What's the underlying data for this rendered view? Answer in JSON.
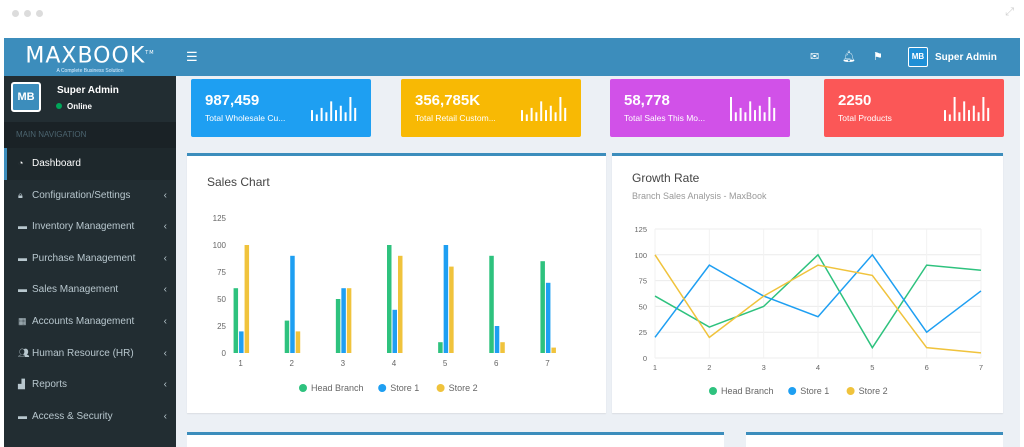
{
  "app": {
    "brand": "MAXBOOK",
    "brand_tm": "TM",
    "tagline": "A Complete Business Solution",
    "avatar_text": "MB"
  },
  "user": {
    "name": "Super Admin",
    "status": "Online"
  },
  "sidebar": {
    "header": "MAIN NAVIGATION",
    "items": [
      {
        "label": "Dashboard",
        "icon": "dashboard-icon",
        "active": true,
        "has_children": false
      },
      {
        "label": "Configuration/Settings",
        "icon": "lock-icon",
        "active": false,
        "has_children": true
      },
      {
        "label": "Inventory Management",
        "icon": "book-icon",
        "active": false,
        "has_children": true
      },
      {
        "label": "Purchase Management",
        "icon": "book-icon",
        "active": false,
        "has_children": true
      },
      {
        "label": "Sales Management",
        "icon": "book-icon",
        "active": false,
        "has_children": true
      },
      {
        "label": "Accounts Management",
        "icon": "calculator-icon",
        "active": false,
        "has_children": true
      },
      {
        "label": "Human Resource (HR)",
        "icon": "users-icon",
        "active": false,
        "has_children": true
      },
      {
        "label": "Reports",
        "icon": "bar-chart-icon",
        "active": false,
        "has_children": true
      },
      {
        "label": "Access & Security",
        "icon": "book-icon",
        "active": false,
        "has_children": true
      }
    ]
  },
  "topbar": {
    "user_name": "Super Admin"
  },
  "stats": [
    {
      "value": "987,459",
      "label": "Total Wholesale Cu...",
      "color": "#1e9ff2",
      "bars": [
        5,
        3,
        6,
        4,
        9,
        5,
        7,
        4,
        11,
        6
      ]
    },
    {
      "value": "356,785K",
      "label": "Total Retail Custom...",
      "color": "#f8b904",
      "bars": [
        5,
        3,
        6,
        4,
        9,
        5,
        7,
        4,
        11,
        6
      ]
    },
    {
      "value": "58,778",
      "label": "Total Sales This Mo...",
      "color": "#d151e8",
      "bars": [
        11,
        4,
        6,
        4,
        9,
        5,
        7,
        4,
        11,
        6
      ]
    },
    {
      "value": "2250",
      "label": "Total Products",
      "color": "#fb5757",
      "bars": [
        5,
        3,
        11,
        4,
        9,
        5,
        7,
        4,
        11,
        6
      ]
    }
  ],
  "colors": {
    "head": "#2ec27e",
    "store1": "#1e9ff2",
    "store2": "#f0c33c"
  },
  "sales_chart": {
    "title": "Sales Chart",
    "chart_data": {
      "type": "bar",
      "categories": [
        "1",
        "2",
        "3",
        "4",
        "5",
        "6",
        "7"
      ],
      "series": [
        {
          "name": "Head Branch",
          "values": [
            60,
            30,
            50,
            100,
            10,
            90,
            85
          ]
        },
        {
          "name": "Store 1",
          "values": [
            20,
            90,
            60,
            40,
            100,
            25,
            65
          ]
        },
        {
          "name": "Store 2",
          "values": [
            100,
            20,
            60,
            90,
            80,
            10,
            5
          ]
        }
      ],
      "yticks": [
        0,
        25,
        50,
        75,
        100,
        125
      ],
      "ylim": [
        0,
        125
      ],
      "legend": "bottom"
    }
  },
  "growth_chart": {
    "title": "Growth Rate",
    "subtitle": "Branch Sales Analysis - MaxBook",
    "chart_data": {
      "type": "line",
      "x": [
        "1",
        "2",
        "3",
        "4",
        "5",
        "6",
        "7"
      ],
      "series": [
        {
          "name": "Head Branch",
          "values": [
            60,
            30,
            50,
            100,
            10,
            90,
            85
          ]
        },
        {
          "name": "Store 1",
          "values": [
            20,
            90,
            60,
            40,
            100,
            25,
            65
          ]
        },
        {
          "name": "Store 2",
          "values": [
            100,
            20,
            60,
            90,
            80,
            10,
            5
          ]
        }
      ],
      "yticks": [
        0,
        25,
        50,
        75,
        100,
        125
      ],
      "ylim": [
        0,
        125
      ],
      "grid": true,
      "legend": "bottom"
    }
  }
}
